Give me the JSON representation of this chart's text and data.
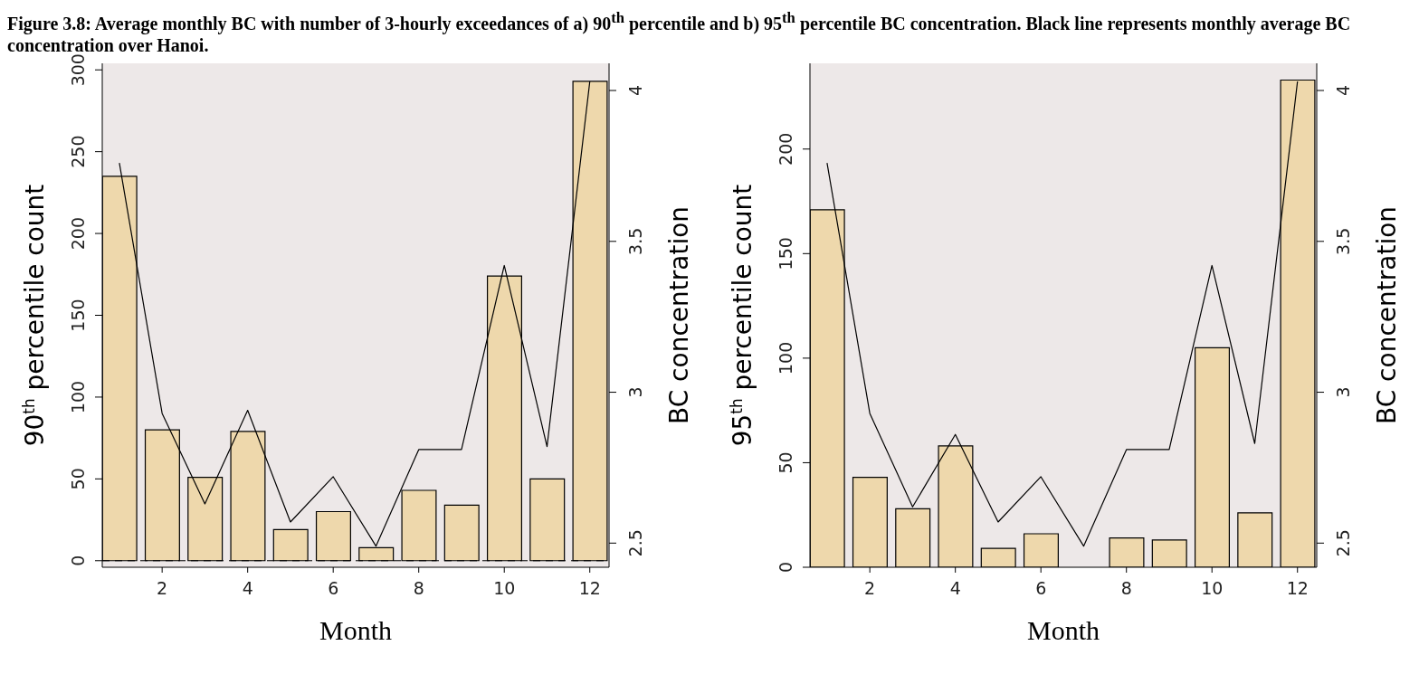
{
  "chart_data": [
    {
      "type": "bar",
      "title": "Figure 3.8: Average monthly BC with number of 3-hourly exceedances of a) 90$^{th}$ percentile and b) 95$^{th}$ percentile BC concentration. Black line represents monthly average BC concentration over Hanoi.",
      "xlabel": "Month",
      "ylabel": "90$^{th}$ percentile count",
      "y2label": "BC concentration",
      "x": [
        1,
        2,
        3,
        4,
        5,
        6,
        7,
        8,
        9,
        10,
        11,
        12
      ],
      "xlim": [
        0.6,
        12.45
      ],
      "xticks": [
        2,
        4,
        6,
        8,
        10,
        12
      ],
      "ylim": [
        -4,
        304
      ],
      "yticks": [
        0,
        50,
        100,
        150,
        200,
        250,
        300
      ],
      "y2lim": [
        2.42,
        4.09
      ],
      "y2ticks": [
        2.5,
        3,
        3.5,
        4
      ],
      "grid": false,
      "marker": "none",
      "series": [
        {
          "color": "#eed8ac",
          "values": [
            235,
            80,
            51,
            79,
            19,
            30,
            8,
            43,
            34,
            174,
            50,
            293
          ]
        },
        {
          "type": "line",
          "axis": "y2",
          "color": "#000000",
          "values": [
            3.76,
            2.93,
            2.63,
            2.94,
            2.57,
            2.72,
            2.49,
            2.81,
            2.81,
            3.42,
            2.82,
            4.03
          ]
        }
      ],
      "ref_lines": [
        {
          "axis": "y",
          "value": 0,
          "line_style": "dashed",
          "color": "#000000"
        }
      ]
    },
    {
      "type": "bar",
      "xlabel": "Month",
      "ylabel": "95$^{th}$ percentile count",
      "y2label": "BC concentration",
      "x": [
        1,
        2,
        3,
        4,
        5,
        6,
        7,
        8,
        9,
        10,
        11,
        12
      ],
      "xlim": [
        0.6,
        12.45
      ],
      "xticks": [
        2,
        4,
        6,
        8,
        10,
        12
      ],
      "ylim": [
        0,
        241
      ],
      "yticks": [
        0,
        50,
        100,
        150,
        200
      ],
      "y2lim": [
        2.42,
        4.09
      ],
      "y2ticks": [
        2.5,
        3,
        3.5,
        4
      ],
      "grid": false,
      "marker": "none",
      "series": [
        {
          "color": "#eed8ac",
          "values": [
            171,
            43,
            28,
            58,
            9,
            16,
            0,
            14,
            13,
            105,
            26,
            233
          ]
        },
        {
          "type": "line",
          "axis": "y2",
          "color": "#000000",
          "values": [
            3.76,
            2.93,
            2.62,
            2.86,
            2.57,
            2.72,
            2.49,
            2.81,
            2.81,
            3.42,
            2.83,
            4.03
          ]
        }
      ]
    }
  ]
}
